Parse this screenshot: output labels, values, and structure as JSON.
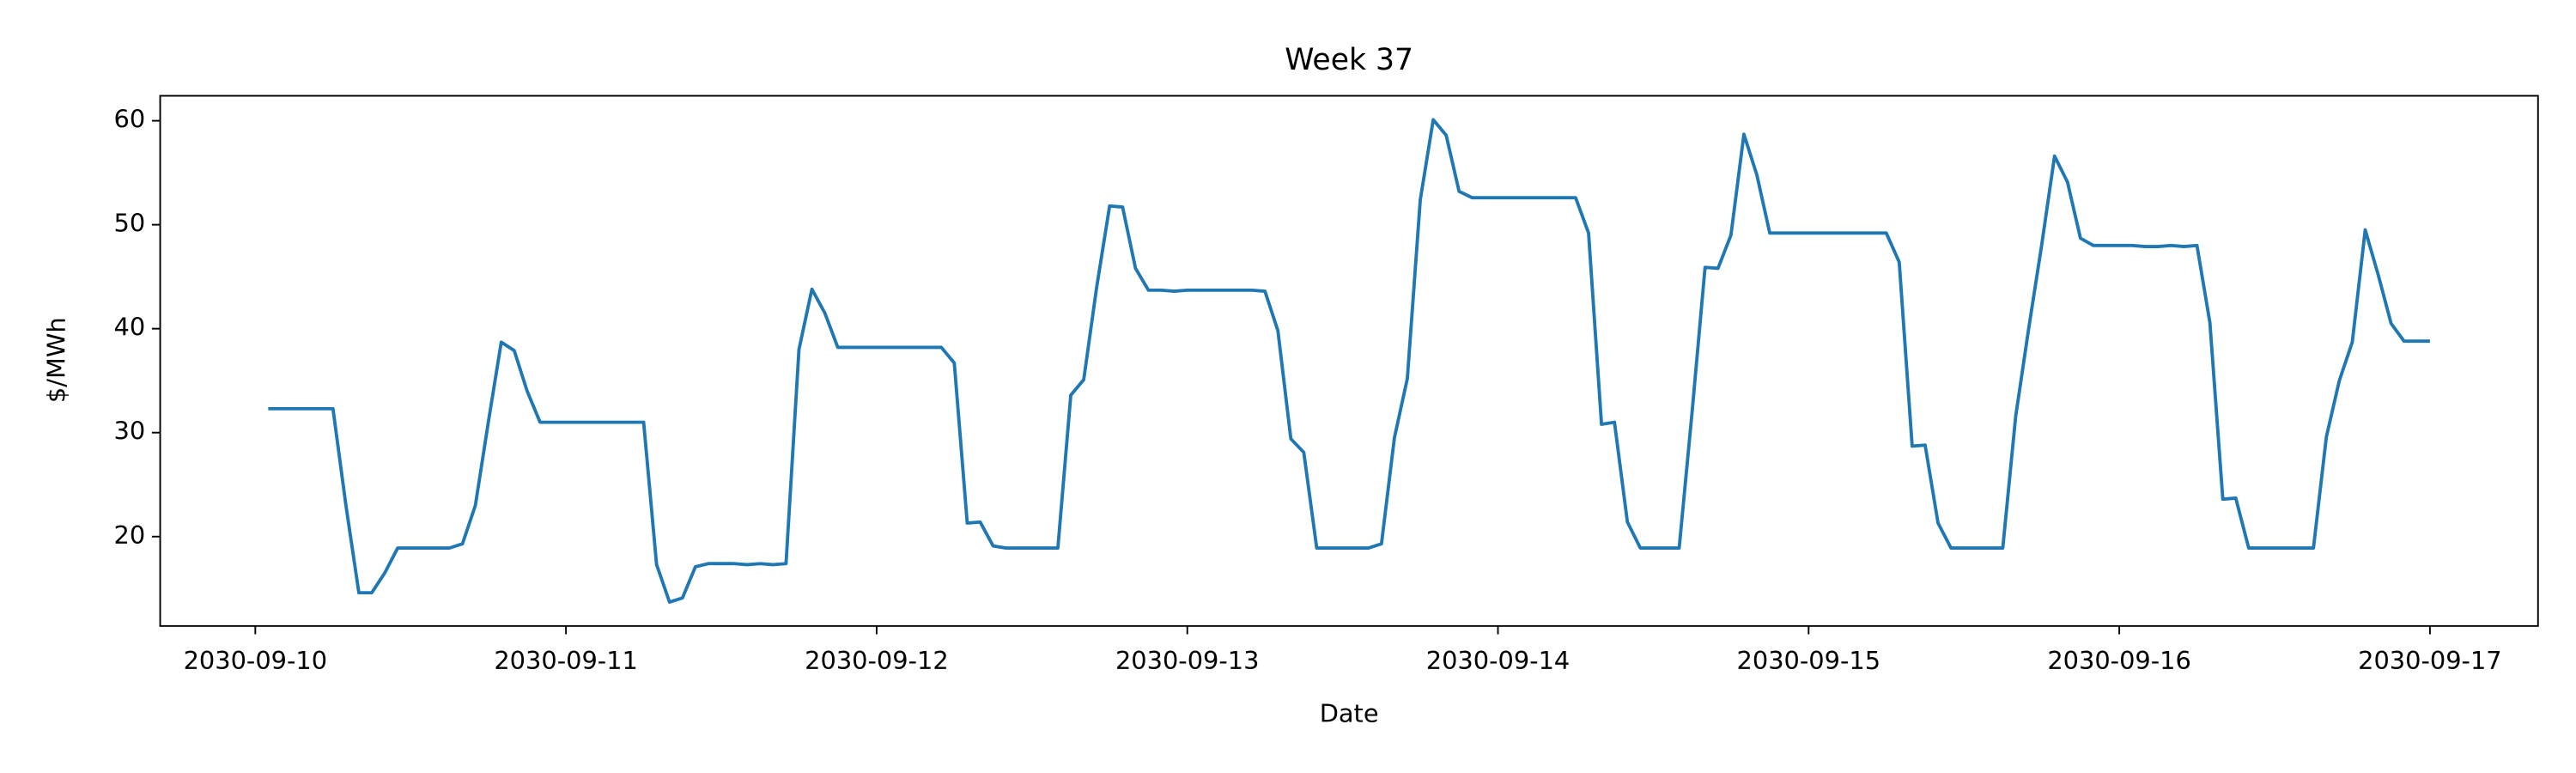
{
  "chart_data": {
    "type": "line",
    "title": "Week 37",
    "xlabel": "Date",
    "ylabel": "$/MWh",
    "x": [
      "2030-09-10T01:00",
      "2030-09-10T02:00",
      "2030-09-10T03:00",
      "2030-09-10T04:00",
      "2030-09-10T05:00",
      "2030-09-10T06:00",
      "2030-09-10T07:00",
      "2030-09-10T08:00",
      "2030-09-10T09:00",
      "2030-09-10T10:00",
      "2030-09-10T11:00",
      "2030-09-10T12:00",
      "2030-09-10T13:00",
      "2030-09-10T14:00",
      "2030-09-10T15:00",
      "2030-09-10T16:00",
      "2030-09-10T17:00",
      "2030-09-10T18:00",
      "2030-09-10T19:00",
      "2030-09-10T20:00",
      "2030-09-10T21:00",
      "2030-09-10T22:00",
      "2030-09-10T23:00",
      "2030-09-11T00:00",
      "2030-09-11T01:00",
      "2030-09-11T02:00",
      "2030-09-11T03:00",
      "2030-09-11T04:00",
      "2030-09-11T05:00",
      "2030-09-11T06:00",
      "2030-09-11T07:00",
      "2030-09-11T08:00",
      "2030-09-11T09:00",
      "2030-09-11T10:00",
      "2030-09-11T11:00",
      "2030-09-11T12:00",
      "2030-09-11T13:00",
      "2030-09-11T14:00",
      "2030-09-11T15:00",
      "2030-09-11T16:00",
      "2030-09-11T17:00",
      "2030-09-11T18:00",
      "2030-09-11T19:00",
      "2030-09-11T20:00",
      "2030-09-11T21:00",
      "2030-09-11T22:00",
      "2030-09-11T23:00",
      "2030-09-12T00:00",
      "2030-09-12T01:00",
      "2030-09-12T02:00",
      "2030-09-12T03:00",
      "2030-09-12T04:00",
      "2030-09-12T05:00",
      "2030-09-12T06:00",
      "2030-09-12T07:00",
      "2030-09-12T08:00",
      "2030-09-12T09:00",
      "2030-09-12T10:00",
      "2030-09-12T11:00",
      "2030-09-12T12:00",
      "2030-09-12T13:00",
      "2030-09-12T14:00",
      "2030-09-12T15:00",
      "2030-09-12T16:00",
      "2030-09-12T17:00",
      "2030-09-12T18:00",
      "2030-09-12T19:00",
      "2030-09-12T20:00",
      "2030-09-12T21:00",
      "2030-09-12T22:00",
      "2030-09-12T23:00",
      "2030-09-13T00:00",
      "2030-09-13T01:00",
      "2030-09-13T02:00",
      "2030-09-13T03:00",
      "2030-09-13T04:00",
      "2030-09-13T05:00",
      "2030-09-13T06:00",
      "2030-09-13T07:00",
      "2030-09-13T08:00",
      "2030-09-13T09:00",
      "2030-09-13T10:00",
      "2030-09-13T11:00",
      "2030-09-13T12:00",
      "2030-09-13T13:00",
      "2030-09-13T14:00",
      "2030-09-13T15:00",
      "2030-09-13T16:00",
      "2030-09-13T17:00",
      "2030-09-13T18:00",
      "2030-09-13T19:00",
      "2030-09-13T20:00",
      "2030-09-13T21:00",
      "2030-09-13T22:00",
      "2030-09-13T23:00",
      "2030-09-14T00:00",
      "2030-09-14T01:00",
      "2030-09-14T02:00",
      "2030-09-14T03:00",
      "2030-09-14T04:00",
      "2030-09-14T05:00",
      "2030-09-14T06:00",
      "2030-09-14T07:00",
      "2030-09-14T08:00",
      "2030-09-14T09:00",
      "2030-09-14T10:00",
      "2030-09-14T11:00",
      "2030-09-14T12:00",
      "2030-09-14T13:00",
      "2030-09-14T14:00",
      "2030-09-14T15:00",
      "2030-09-14T16:00",
      "2030-09-14T17:00",
      "2030-09-14T18:00",
      "2030-09-14T19:00",
      "2030-09-14T20:00",
      "2030-09-14T21:00",
      "2030-09-14T22:00",
      "2030-09-14T23:00",
      "2030-09-15T00:00",
      "2030-09-15T01:00",
      "2030-09-15T02:00",
      "2030-09-15T03:00",
      "2030-09-15T04:00",
      "2030-09-15T05:00",
      "2030-09-15T06:00",
      "2030-09-15T07:00",
      "2030-09-15T08:00",
      "2030-09-15T09:00",
      "2030-09-15T10:00",
      "2030-09-15T11:00",
      "2030-09-15T12:00",
      "2030-09-15T13:00",
      "2030-09-15T14:00",
      "2030-09-15T15:00",
      "2030-09-15T16:00",
      "2030-09-15T17:00",
      "2030-09-15T18:00",
      "2030-09-15T19:00",
      "2030-09-15T20:00",
      "2030-09-15T21:00",
      "2030-09-15T22:00",
      "2030-09-15T23:00",
      "2030-09-16T00:00",
      "2030-09-16T01:00",
      "2030-09-16T02:00",
      "2030-09-16T03:00",
      "2030-09-16T04:00",
      "2030-09-16T05:00",
      "2030-09-16T06:00",
      "2030-09-16T07:00",
      "2030-09-16T08:00",
      "2030-09-16T09:00",
      "2030-09-16T10:00",
      "2030-09-16T11:00",
      "2030-09-16T12:00",
      "2030-09-16T13:00",
      "2030-09-16T14:00",
      "2030-09-16T15:00",
      "2030-09-16T16:00",
      "2030-09-16T17:00",
      "2030-09-16T18:00",
      "2030-09-16T19:00",
      "2030-09-16T20:00",
      "2030-09-16T21:00",
      "2030-09-16T22:00",
      "2030-09-16T23:00",
      "2030-09-17T00:00"
    ],
    "series": [
      {
        "color": "#1f77b4",
        "values": [
          32.3,
          32.3,
          32.3,
          32.3,
          32.3,
          32.3,
          23,
          14.6,
          14.6,
          16.5,
          18.9,
          18.9,
          18.9,
          18.9,
          18.9,
          19.3,
          23,
          31,
          38.7,
          37.9,
          34,
          31,
          31,
          31,
          31,
          31,
          31,
          31,
          31,
          31,
          17.3,
          13.7,
          14.1,
          17.1,
          17.4,
          17.4,
          17.4,
          17.3,
          17.4,
          17.3,
          17.4,
          38,
          43.8,
          41.5,
          38.2,
          38.2,
          38.2,
          38.2,
          38.2,
          38.2,
          38.2,
          38.2,
          38.2,
          36.7,
          21.3,
          21.4,
          19.1,
          18.9,
          18.9,
          18.9,
          18.9,
          18.9,
          33.6,
          35.1,
          44,
          51.8,
          51.7,
          45.8,
          43.7,
          43.7,
          43.6,
          43.7,
          43.7,
          43.7,
          43.7,
          43.7,
          43.7,
          43.6,
          39.8,
          29.4,
          28.1,
          18.9,
          18.9,
          18.9,
          18.9,
          18.9,
          19.3,
          29.5,
          35.2,
          52.4,
          60.1,
          58.6,
          53.2,
          52.6,
          52.6,
          52.6,
          52.6,
          52.6,
          52.6,
          52.6,
          52.6,
          52.6,
          49.2,
          30.8,
          31,
          21.4,
          18.9,
          18.9,
          18.9,
          18.9,
          32,
          45.9,
          45.8,
          49,
          58.7,
          54.8,
          49.2,
          49.2,
          49.2,
          49.2,
          49.2,
          49.2,
          49.2,
          49.2,
          49.2,
          49.2,
          46.4,
          28.7,
          28.8,
          21.3,
          18.9,
          18.9,
          18.9,
          18.9,
          18.9,
          31.6,
          40,
          48,
          56.6,
          54.1,
          48.7,
          48,
          48,
          48,
          48,
          47.9,
          47.9,
          48,
          47.9,
          48,
          40.6,
          23.6,
          23.7,
          18.9,
          18.9,
          18.9,
          18.9,
          18.9,
          18.9,
          29.6,
          35,
          38.7,
          49.5,
          45.2,
          40.5,
          38.8,
          38.8,
          38.8
        ]
      }
    ],
    "xlim": [
      "2030-09-09T16:39",
      "2030-09-17T08:21"
    ],
    "xticks": [
      "2030-09-10",
      "2030-09-11",
      "2030-09-12",
      "2030-09-13",
      "2030-09-14",
      "2030-09-15",
      "2030-09-16",
      "2030-09-17"
    ],
    "ylim": [
      11.4,
      62.4
    ],
    "yticks": [
      20,
      30,
      40,
      50,
      60
    ],
    "grid": false
  }
}
